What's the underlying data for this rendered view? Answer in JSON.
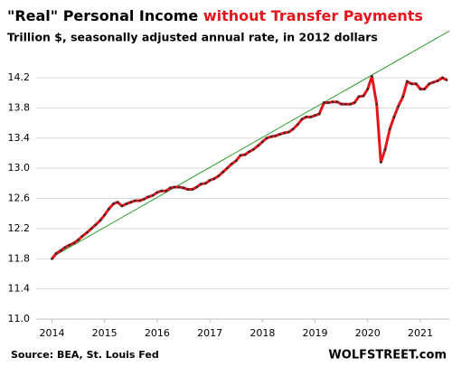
{
  "chart_data": {
    "type": "line",
    "title": "\"Real\" Personal Income",
    "title_highlight": "without Transfer Payments",
    "title_highlight_color": "#e8141c",
    "subtitle": "Trillion $, seasonally adjusted annual rate, in 2012 dollars",
    "source": "Source: BEA, St. Louis Fed",
    "credit": "WOLFSTREET.com",
    "xlim": [
      2013.7,
      2021.55
    ],
    "xticks": [
      2014,
      2015,
      2016,
      2017,
      2018,
      2019,
      2020,
      2021
    ],
    "ylim": [
      11.0,
      14.5
    ],
    "yticks": [
      {
        "value": 11,
        "label": "11.0"
      },
      11.4,
      11.8,
      12.2,
      12.6,
      {
        "value": 13,
        "label": "13.0"
      },
      13.4,
      13.8,
      14.2
    ],
    "grid": true,
    "series": [
      {
        "color": "#e8141c",
        "marker_color": "#3a2a2a",
        "x": [
          2014.0,
          2014.08,
          2014.17,
          2014.25,
          2014.33,
          2014.42,
          2014.5,
          2014.58,
          2014.67,
          2014.75,
          2014.83,
          2014.92,
          2015.0,
          2015.08,
          2015.17,
          2015.25,
          2015.33,
          2015.42,
          2015.5,
          2015.58,
          2015.67,
          2015.75,
          2015.83,
          2015.92,
          2016.0,
          2016.08,
          2016.17,
          2016.25,
          2016.33,
          2016.42,
          2016.5,
          2016.58,
          2016.67,
          2016.75,
          2016.83,
          2016.92,
          2017.0,
          2017.08,
          2017.17,
          2017.25,
          2017.33,
          2017.42,
          2017.5,
          2017.58,
          2017.67,
          2017.75,
          2017.83,
          2017.92,
          2018.0,
          2018.08,
          2018.17,
          2018.25,
          2018.33,
          2018.42,
          2018.5,
          2018.58,
          2018.67,
          2018.75,
          2018.83,
          2018.92,
          2019.0,
          2019.08,
          2019.17,
          2019.25,
          2019.33,
          2019.42,
          2019.5,
          2019.58,
          2019.67,
          2019.75,
          2019.83,
          2019.92,
          2020.0,
          2020.08,
          2020.17,
          2020.25,
          2020.33,
          2020.42,
          2020.5,
          2020.58,
          2020.67,
          2020.75,
          2020.83,
          2020.92,
          2021.0,
          2021.08,
          2021.17,
          2021.25,
          2021.33,
          2021.42,
          2021.5
        ],
        "values": [
          11.8,
          11.87,
          11.91,
          11.95,
          11.98,
          12.01,
          12.05,
          12.1,
          12.15,
          12.2,
          12.25,
          12.31,
          12.38,
          12.46,
          12.53,
          12.55,
          12.5,
          12.53,
          12.55,
          12.57,
          12.57,
          12.59,
          12.62,
          12.64,
          12.68,
          12.7,
          12.7,
          12.74,
          12.75,
          12.75,
          12.74,
          12.72,
          12.72,
          12.75,
          12.79,
          12.8,
          12.84,
          12.86,
          12.9,
          12.95,
          13.0,
          13.06,
          13.1,
          13.17,
          13.18,
          13.22,
          13.25,
          13.3,
          13.35,
          13.4,
          13.42,
          13.43,
          13.45,
          13.47,
          13.48,
          13.52,
          13.58,
          13.65,
          13.68,
          13.68,
          13.7,
          13.72,
          13.87,
          13.87,
          13.88,
          13.88,
          13.85,
          13.85,
          13.85,
          13.87,
          13.95,
          13.96,
          14.05,
          14.22,
          13.85,
          13.08,
          13.25,
          13.52,
          13.68,
          13.82,
          13.95,
          14.15,
          14.12,
          14.12,
          14.05,
          14.05,
          14.12,
          14.14,
          14.16,
          14.2,
          14.17
        ]
      },
      {
        "color": "#2ea02e",
        "x": [
          2014.0,
          2021.55
        ],
        "values": [
          11.82,
          14.82
        ]
      }
    ]
  }
}
